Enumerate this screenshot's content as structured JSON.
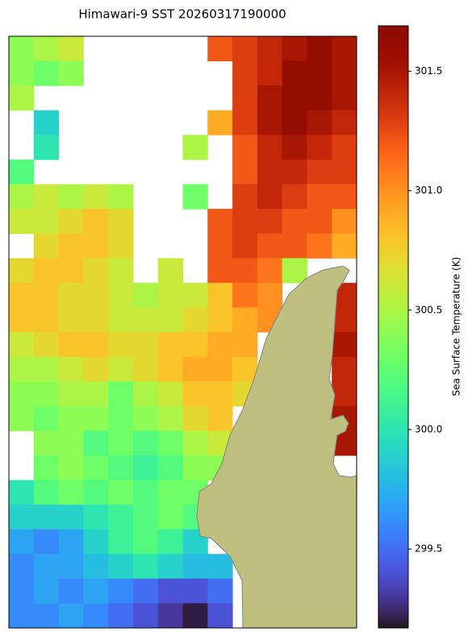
{
  "chart_data": {
    "type": "heatmap",
    "title": "Himawari-9 SST 20260317190000",
    "colorbar_label": "Sea Surface Temperature (K)",
    "colormap": "turbo",
    "clim": [
      299.17,
      301.69
    ],
    "cticks": [
      299.5,
      {
        "value": 300,
        "label": "300.0"
      },
      300.5,
      {
        "value": 301,
        "label": "301.0"
      },
      301.5
    ],
    "z": [
      [
        300.4,
        300.5,
        300.6,
        null,
        null,
        null,
        null,
        null,
        301.2,
        301.3,
        301.4,
        301.5,
        301.6,
        301.5
      ],
      [
        300.4,
        300.3,
        300.4,
        null,
        null,
        null,
        null,
        null,
        null,
        301.3,
        301.4,
        301.6,
        301.6,
        301.5
      ],
      [
        300.5,
        null,
        null,
        null,
        null,
        null,
        null,
        null,
        null,
        301.3,
        301.5,
        301.6,
        301.6,
        301.5
      ],
      [
        null,
        299.9,
        null,
        null,
        null,
        null,
        null,
        null,
        300.9,
        301.3,
        301.5,
        301.6,
        301.5,
        301.4
      ],
      [
        null,
        300.0,
        null,
        null,
        null,
        null,
        null,
        300.5,
        null,
        301.2,
        301.4,
        301.5,
        301.4,
        301.3
      ],
      [
        300.2,
        null,
        null,
        null,
        null,
        null,
        null,
        null,
        null,
        301.2,
        301.4,
        301.4,
        301.3,
        301.3
      ],
      [
        300.5,
        300.6,
        300.5,
        300.6,
        300.5,
        null,
        null,
        300.3,
        null,
        301.3,
        301.4,
        301.3,
        301.2,
        301.2
      ],
      [
        300.6,
        300.6,
        300.7,
        300.8,
        300.7,
        null,
        null,
        null,
        301.2,
        301.3,
        301.3,
        301.2,
        301.2,
        301.0
      ],
      [
        null,
        300.7,
        300.8,
        300.8,
        300.7,
        null,
        null,
        null,
        301.2,
        301.3,
        301.2,
        301.2,
        301.1,
        300.9
      ],
      [
        300.7,
        300.8,
        300.8,
        300.7,
        300.6,
        null,
        300.6,
        null,
        301.2,
        301.2,
        301.1,
        300.5,
        null,
        null
      ],
      [
        300.8,
        300.8,
        300.7,
        300.7,
        300.6,
        300.5,
        300.6,
        300.6,
        300.8,
        301.1,
        301.0,
        null,
        null,
        301.4
      ],
      [
        300.8,
        300.8,
        300.7,
        300.7,
        300.6,
        300.6,
        300.6,
        300.7,
        300.8,
        300.9,
        301.0,
        null,
        null,
        301.4
      ],
      [
        300.6,
        300.7,
        300.8,
        300.8,
        300.7,
        300.7,
        300.8,
        300.8,
        300.9,
        300.9,
        null,
        null,
        null,
        301.5
      ],
      [
        300.5,
        300.5,
        300.6,
        300.7,
        300.6,
        300.7,
        300.8,
        300.9,
        300.9,
        300.8,
        null,
        null,
        null,
        301.4
      ],
      [
        300.4,
        300.4,
        300.5,
        300.5,
        300.3,
        300.5,
        300.6,
        300.8,
        300.8,
        300.7,
        null,
        null,
        null,
        301.4
      ],
      [
        300.4,
        300.3,
        300.4,
        300.4,
        300.3,
        300.4,
        300.5,
        300.7,
        300.8,
        null,
        null,
        null,
        null,
        301.5
      ],
      [
        null,
        300.4,
        300.4,
        300.2,
        300.3,
        300.2,
        300.3,
        300.5,
        300.6,
        null,
        null,
        null,
        null,
        301.5
      ],
      [
        null,
        300.3,
        300.4,
        300.3,
        300.2,
        300.1,
        300.2,
        300.4,
        300.4,
        null,
        null,
        null,
        null,
        null
      ],
      [
        300.0,
        300.2,
        300.3,
        300.2,
        300.3,
        300.2,
        300.3,
        300.3,
        null,
        null,
        null,
        null,
        null,
        null
      ],
      [
        299.9,
        299.9,
        299.9,
        300.0,
        300.1,
        300.2,
        300.3,
        300.2,
        null,
        null,
        null,
        null,
        null,
        null
      ],
      [
        299.7,
        299.6,
        299.7,
        299.9,
        300.1,
        300.2,
        300.1,
        299.9,
        null,
        null,
        null,
        null,
        null,
        null
      ],
      [
        299.6,
        299.7,
        299.7,
        299.8,
        299.9,
        300.0,
        299.9,
        299.8,
        299.8,
        null,
        null,
        null,
        null,
        null
      ],
      [
        299.6,
        299.7,
        299.6,
        299.7,
        299.6,
        299.5,
        299.4,
        299.4,
        299.5,
        null,
        null,
        null,
        null,
        null
      ],
      [
        299.6,
        299.6,
        299.7,
        299.6,
        299.5,
        299.4,
        299.3,
        299.2,
        299.4,
        null,
        null,
        null,
        null,
        null
      ]
    ]
  }
}
